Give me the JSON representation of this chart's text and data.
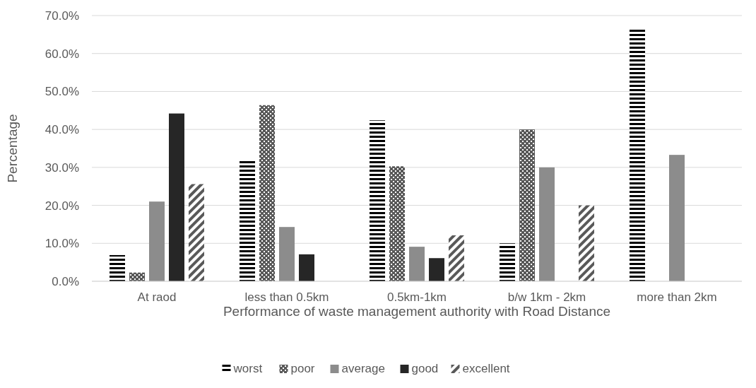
{
  "chart_data": {
    "type": "bar",
    "xlabel": "Performance of waste management authority with Road Distance",
    "ylabel": "Percentage",
    "categories": [
      "At raod",
      "less than 0.5km",
      "0.5km-1km",
      "b/w 1km - 2km",
      "more than 2km"
    ],
    "series": [
      {
        "name": "worst",
        "color": "#000000",
        "values": [
          6.9,
          32.1,
          42.4,
          10,
          66.7
        ]
      },
      {
        "name": "poor",
        "color": "#595959",
        "values": [
          2.3,
          46.4,
          30.3,
          40,
          0
        ]
      },
      {
        "name": "average",
        "color": "#8c8c8c",
        "values": [
          21,
          14.3,
          9.1,
          30,
          33.3
        ]
      },
      {
        "name": "good",
        "color": "#262626",
        "values": [
          44.2,
          7.1,
          6.1,
          0,
          0
        ]
      },
      {
        "name": "excellent",
        "color": "#595959",
        "values": [
          25.6,
          0,
          12.1,
          20,
          0
        ]
      }
    ],
    "ylim": [
      0,
      70
    ],
    "yticks": [
      {
        "value": 0,
        "label": "0.0%"
      },
      {
        "value": 10,
        "label": "10.0%"
      },
      {
        "value": 20,
        "label": "20.0%"
      },
      {
        "value": 30,
        "label": "30.0%"
      },
      {
        "value": 40,
        "label": "40.0%"
      },
      {
        "value": 50,
        "label": "50.0%"
      },
      {
        "value": 60,
        "label": "60.0%"
      },
      {
        "value": 70,
        "label": "70.0%"
      }
    ],
    "grid": "y",
    "legend": "bottom"
  }
}
